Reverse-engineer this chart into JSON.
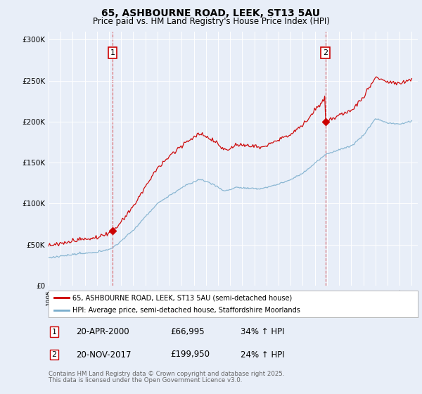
{
  "title": "65, ASHBOURNE ROAD, LEEK, ST13 5AU",
  "subtitle": "Price paid vs. HM Land Registry's House Price Index (HPI)",
  "background_color": "#e8eef8",
  "plot_bg_color": "#e8eef8",
  "ylim": [
    0,
    310000
  ],
  "yticks": [
    0,
    50000,
    100000,
    150000,
    200000,
    250000,
    300000
  ],
  "ytick_labels": [
    "£0",
    "£50K",
    "£100K",
    "£150K",
    "£200K",
    "£250K",
    "£300K"
  ],
  "x_start_year": 1995,
  "x_end_year": 2025,
  "sale1_date": 2000.29,
  "sale1_label": "1",
  "sale1_price": 66995,
  "sale1_hpi_pct": "34%",
  "sale1_display": "20-APR-2000",
  "sale2_date": 2017.88,
  "sale2_label": "2",
  "sale2_price": 199950,
  "sale2_hpi_pct": "24%",
  "sale2_display": "20-NOV-2017",
  "red_line_color": "#cc0000",
  "blue_line_color": "#7aadcc",
  "legend_label1": "65, ASHBOURNE ROAD, LEEK, ST13 5AU (semi-detached house)",
  "legend_label2": "HPI: Average price, semi-detached house, Staffordshire Moorlands",
  "footer1": "Contains HM Land Registry data © Crown copyright and database right 2025.",
  "footer2": "This data is licensed under the Open Government Licence v3.0."
}
